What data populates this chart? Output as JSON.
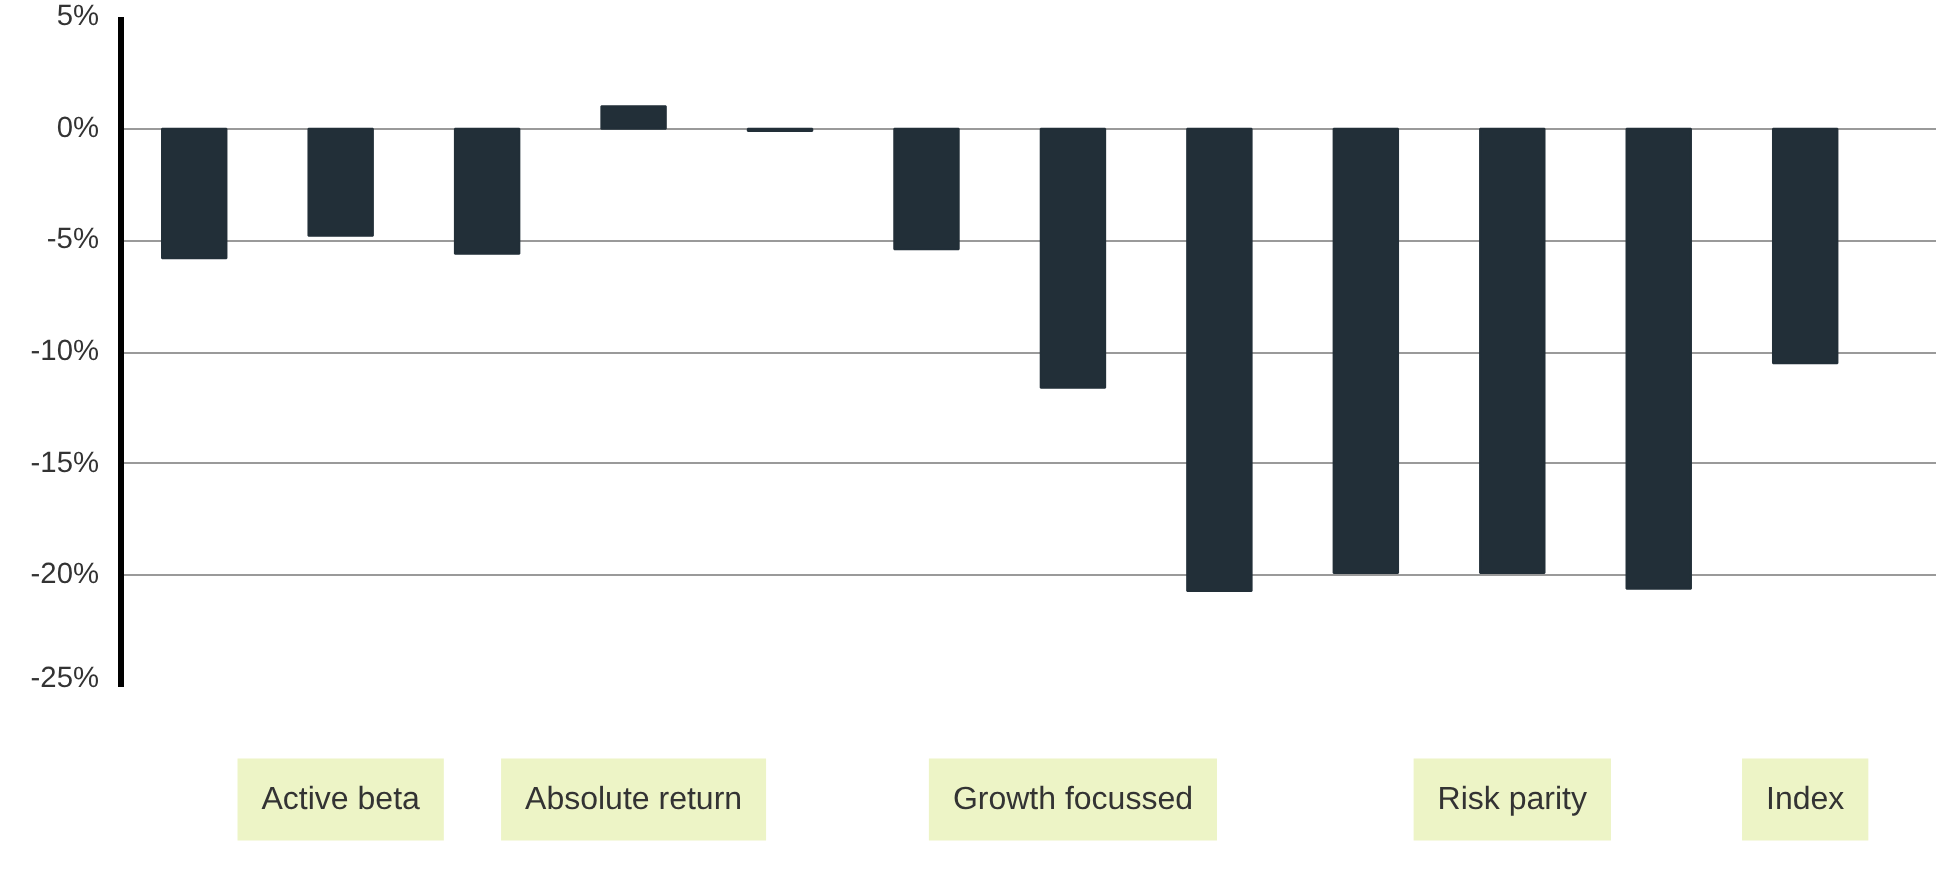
{
  "chart_data": {
    "type": "bar",
    "categories": [
      null,
      "Active beta",
      null,
      "Absolute return",
      null,
      null,
      "Growth focussed",
      null,
      null,
      "Risk parity",
      null,
      "Index"
    ],
    "values": [
      -5.8,
      -4.8,
      -5.6,
      1.0,
      -0.1,
      -5.4,
      -11.6,
      -20.7,
      -19.9,
      -19.9,
      -20.6,
      -10.5
    ],
    "color": "#222f38",
    "ylim": [
      -25,
      5
    ],
    "yticks": [
      {
        "value": 5,
        "label": "5%"
      },
      {
        "value": 0,
        "label": "0%"
      },
      {
        "value": -5,
        "label": "-5%"
      },
      {
        "value": -10,
        "label": "-10%"
      },
      {
        "value": -15,
        "label": "-15%"
      },
      {
        "value": -20,
        "label": "-20%"
      },
      {
        "value": -25,
        "label": "-25%"
      }
    ],
    "grid": "y"
  }
}
